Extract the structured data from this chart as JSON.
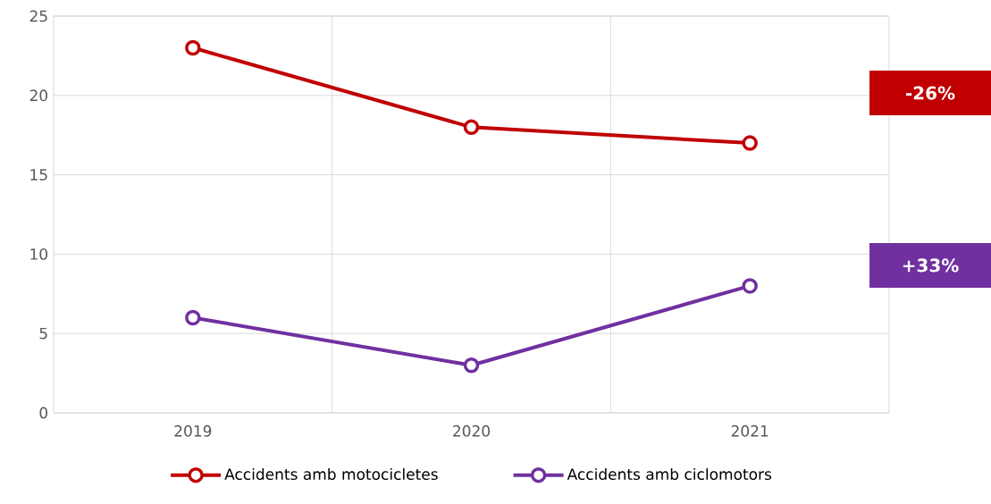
{
  "chart_data": {
    "type": "line",
    "categories": [
      "2019",
      "2020",
      "2021"
    ],
    "series": [
      {
        "name": "Accidents amb motocicletes",
        "color": "#c00000",
        "values": [
          23,
          18,
          17
        ]
      },
      {
        "name": "Accidents amb ciclomotors",
        "color": "#7030a0",
        "values": [
          6,
          3,
          8
        ]
      }
    ],
    "ylim": [
      0,
      25
    ],
    "yticks": [
      0,
      5,
      10,
      15,
      20,
      25
    ],
    "grid": true,
    "legend": "bottom",
    "marker": "circle",
    "annotations": [
      "-26%",
      "+33%"
    ]
  }
}
